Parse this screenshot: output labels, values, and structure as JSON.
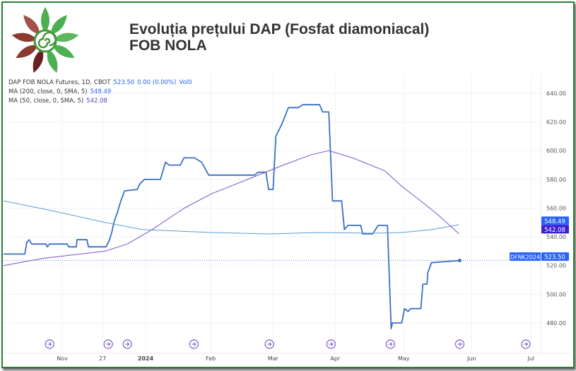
{
  "header": {
    "title_line1": "Evoluția prețului DAP (Fosfat diamoniacal)",
    "title_line2": "FOB NOLA"
  },
  "legend": {
    "symbol": "DAP FOB NOLA Futures, 1D, CBOT",
    "last": "523.50",
    "change": "0.00 (0.00%)",
    "volume": "Vol0",
    "ma200_label": "MA (200, close, 0, SMA, 5)",
    "ma200_value": "548.49",
    "ma50_label": "MA (50, close, 0, SMA, 5)",
    "ma50_value": "542.08"
  },
  "colors": {
    "price": "#3a6fc4",
    "ma200": "#5b9bd5",
    "ma50": "#7b4fc9",
    "frame": "#2e7d32",
    "label": "#2962ff",
    "label_ma50": "#3d1fd0"
  },
  "chart_data": {
    "type": "line",
    "title": "Evoluția prețului DAP (Fosfat diamoniacal) FOB NOLA",
    "xlabel": "",
    "ylabel": "",
    "xlim": [
      0,
      217
    ],
    "ylim": [
      466,
      652
    ],
    "x_ticks": [
      {
        "x": 23.7,
        "label": "Nov"
      },
      {
        "x": 40,
        "label": "27"
      },
      {
        "x": 57.4,
        "label": "2024",
        "bold": true
      },
      {
        "x": 83.7,
        "label": "Feb"
      },
      {
        "x": 108.9,
        "label": "Mar"
      },
      {
        "x": 134,
        "label": "Apr"
      },
      {
        "x": 161.7,
        "label": "May"
      },
      {
        "x": 189.1,
        "label": "Jun"
      },
      {
        "x": 213.1,
        "label": "Jul"
      }
    ],
    "y_ticks": [
      480,
      500,
      520,
      540,
      560,
      580,
      600,
      620,
      640
    ],
    "y_tick_labels": [
      "480.00",
      "500.00",
      "520.00",
      "540.00",
      "560.00",
      "580.00",
      "600.00",
      "620.00",
      "640.00"
    ],
    "event_markers_x": [
      18.6,
      42.3,
      50,
      76.9,
      107.4,
      132.3,
      156.3,
      184.3,
      211
    ],
    "series": [
      {
        "name": "DFNK2024",
        "values": [
          [
            0,
            528
          ],
          [
            8.6,
            528
          ],
          [
            9.4,
            536
          ],
          [
            10.3,
            538
          ],
          [
            11.4,
            535
          ],
          [
            17.1,
            535
          ],
          [
            17.7,
            533
          ],
          [
            18.6,
            535
          ],
          [
            25.7,
            535
          ],
          [
            26.3,
            533
          ],
          [
            29.4,
            533
          ],
          [
            29.7,
            538
          ],
          [
            33.7,
            538
          ],
          [
            34.3,
            533
          ],
          [
            41.4,
            533
          ],
          [
            42.6,
            537
          ],
          [
            43.7,
            543
          ],
          [
            44.6,
            550
          ],
          [
            46,
            557
          ],
          [
            47.4,
            565
          ],
          [
            48.9,
            572
          ],
          [
            54,
            573
          ],
          [
            55.1,
            577
          ],
          [
            56.9,
            580
          ],
          [
            63.4,
            580
          ],
          [
            65.4,
            592
          ],
          [
            66.9,
            590
          ],
          [
            71.4,
            590
          ],
          [
            72.9,
            595
          ],
          [
            77.1,
            595
          ],
          [
            80,
            592
          ],
          [
            82.9,
            583
          ],
          [
            101.4,
            583
          ],
          [
            102.9,
            585
          ],
          [
            106,
            585
          ],
          [
            107.1,
            573
          ],
          [
            108.9,
            573
          ],
          [
            110,
            610
          ],
          [
            112.3,
            618
          ],
          [
            115.1,
            630
          ],
          [
            119.1,
            630
          ],
          [
            120.9,
            632
          ],
          [
            127.7,
            632
          ],
          [
            128.9,
            627
          ],
          [
            131.4,
            627
          ],
          [
            132.9,
            565
          ],
          [
            136.6,
            565
          ],
          [
            137.7,
            545
          ],
          [
            139.1,
            548
          ],
          [
            144.3,
            548
          ],
          [
            145.1,
            542
          ],
          [
            149.1,
            542
          ],
          [
            151.4,
            548
          ],
          [
            155.1,
            548
          ],
          [
            156.6,
            476
          ],
          [
            157.1,
            480
          ],
          [
            160.9,
            480
          ],
          [
            162,
            490
          ],
          [
            163.4,
            488
          ],
          [
            164.6,
            490
          ],
          [
            168.6,
            490
          ],
          [
            169.4,
            507
          ],
          [
            171.1,
            507
          ],
          [
            171.4,
            515
          ],
          [
            172.9,
            522
          ],
          [
            184.3,
            523.5
          ]
        ]
      },
      {
        "name": "MA 200",
        "values": [
          [
            0,
            565
          ],
          [
            20,
            558
          ],
          [
            41,
            550
          ],
          [
            56,
            545
          ],
          [
            84,
            543
          ],
          [
            107,
            542
          ],
          [
            127,
            543
          ],
          [
            150,
            542.5
          ],
          [
            161,
            543
          ],
          [
            173,
            545
          ],
          [
            184,
            548.49
          ]
        ]
      },
      {
        "name": "MA 50",
        "values": [
          [
            0,
            520
          ],
          [
            16,
            525
          ],
          [
            41,
            530
          ],
          [
            50,
            535
          ],
          [
            60,
            545
          ],
          [
            73,
            560
          ],
          [
            84,
            570
          ],
          [
            98.6,
            580
          ],
          [
            113,
            590
          ],
          [
            124,
            597
          ],
          [
            131.4,
            600
          ],
          [
            141,
            595
          ],
          [
            154,
            586
          ],
          [
            161,
            575
          ],
          [
            170,
            563
          ],
          [
            175.7,
            555
          ],
          [
            184,
            542.08
          ]
        ]
      }
    ],
    "price_labels": [
      {
        "text": "548.49",
        "value": 548.49,
        "color": "#2962ff"
      },
      {
        "text": "542.08",
        "value": 542.08,
        "color": "#3d1fd0"
      },
      {
        "text": "523.50",
        "value": 523.5,
        "color": "#2962ff",
        "tag": "DFNK2024"
      }
    ]
  }
}
